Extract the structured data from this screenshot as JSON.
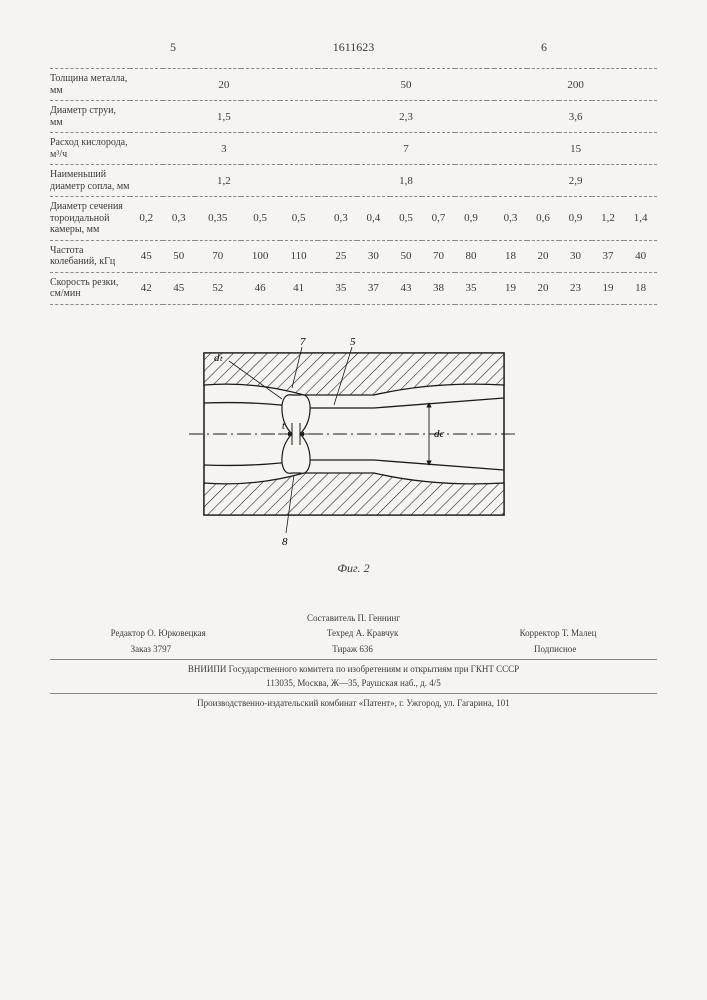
{
  "pagenum_left": "5",
  "patent_number": "1611623",
  "pagenum_right": "6",
  "table": {
    "rows": [
      {
        "label": "Толщина металла, мм",
        "group_values": [
          "20",
          "50",
          "200"
        ],
        "per_cell": false
      },
      {
        "label": "Диаметр струи, мм",
        "group_values": [
          "1,5",
          "2,3",
          "3,6"
        ],
        "per_cell": false
      },
      {
        "label": "Расход кислорода, м³/ч",
        "group_values": [
          "3",
          "7",
          "15"
        ],
        "per_cell": false
      },
      {
        "label": "Наименьший диаметр сопла, мм",
        "group_values": [
          "1,2",
          "1,8",
          "2,9"
        ],
        "per_cell": false
      },
      {
        "label": "Диаметр сечения тороидальной камеры, мм",
        "cells": [
          "0,2",
          "0,3",
          "0,35",
          "0,5",
          "0,5",
          "0,3",
          "0,4",
          "0,5",
          "0,7",
          "0,9",
          "0,3",
          "0,6",
          "0,9",
          "1,2",
          "1,4"
        ],
        "per_cell": true
      },
      {
        "label": "Частота колебаний, кГц",
        "cells": [
          "45",
          "50",
          "70",
          "100",
          "110",
          "25",
          "30",
          "50",
          "70",
          "80",
          "18",
          "20",
          "30",
          "37",
          "40"
        ],
        "per_cell": true
      },
      {
        "label": "Скорость резки, см/мин",
        "cells": [
          "42",
          "45",
          "52",
          "46",
          "41",
          "35",
          "37",
          "43",
          "38",
          "35",
          "19",
          "20",
          "23",
          "19",
          "18"
        ],
        "per_cell": true
      }
    ]
  },
  "figure": {
    "labels": {
      "dt": "dₜ",
      "seven": "7",
      "five": "5",
      "t": "t",
      "dc": "dс",
      "eight": "8"
    },
    "caption": "Фиг. 2",
    "colors": {
      "stroke": "#1a1a1a",
      "hatch": "#1a1a1a",
      "bg": "#f6f4ef"
    }
  },
  "footer": {
    "composer": "Составитель П. Геннинг",
    "editor": "Редактор О. Юрковецкая",
    "tech": "Техред А. Кравчук",
    "corrector": "Корректор Т. Малец",
    "order": "Заказ 3797",
    "tirage": "Тираж 636",
    "sub": "Подписное",
    "line1": "ВНИИПИ Государственного комитета по изобретениям и открытиям при ГКНТ СССР",
    "line2": "113035, Москва, Ж—35, Раушская наб., д. 4/5",
    "line3": "Производственно-издательский комбинат «Патент», г. Ужгород, ул. Гагарина, 101"
  }
}
